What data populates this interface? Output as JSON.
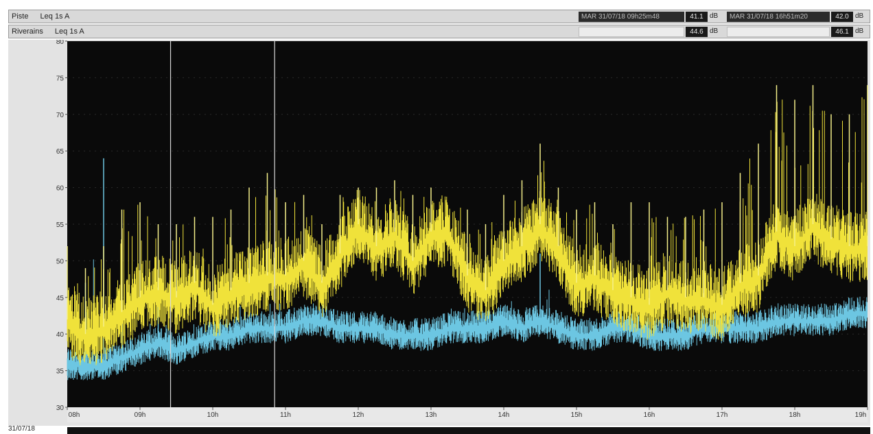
{
  "header": {
    "row1": {
      "label1": "Piste",
      "label2": "Leq 1s  A",
      "readout_min": "MAR 31/07/18 09h25m48",
      "value_min": "41.1",
      "unit_min": "dB",
      "readout_max": "MAR 31/07/18 16h51m20",
      "value_max": "42.0",
      "unit_max": "dB"
    },
    "row2": {
      "label1": "Riverains",
      "label2": "Leq 1s  A",
      "value_min": "44.6",
      "unit_min": "dB",
      "value_max": "46.1",
      "unit_max": "dB"
    }
  },
  "footer": {
    "date": "31/07/18"
  },
  "colors": {
    "background": "#0a0a0a",
    "yellow_series": "#f0e23a",
    "blue_series": "#6cc6e2"
  },
  "chart_data": {
    "type": "line",
    "xlabel": "",
    "ylabel": "",
    "xlim": [
      8,
      19
    ],
    "ylim": [
      30,
      80
    ],
    "yticks": [
      30,
      35,
      40,
      45,
      50,
      55,
      60,
      65,
      70,
      75,
      80
    ],
    "xtick_labels": [
      "08h",
      "09h",
      "10h",
      "11h",
      "12h",
      "13h",
      "14h",
      "15h",
      "16h",
      "17h",
      "18h",
      "19h"
    ],
    "markers_hours": [
      9.42,
      10.85
    ],
    "series": [
      {
        "name": "Riverains",
        "color": "#f0e23a",
        "hours": [
          8.0,
          8.25,
          8.5,
          8.75,
          9.0,
          9.25,
          9.5,
          9.75,
          10.0,
          10.25,
          10.5,
          10.75,
          11.0,
          11.25,
          11.5,
          11.75,
          12.0,
          12.25,
          12.5,
          12.75,
          13.0,
          13.25,
          13.5,
          13.75,
          14.0,
          14.25,
          14.5,
          14.75,
          15.0,
          15.25,
          15.5,
          15.75,
          16.0,
          16.25,
          16.5,
          16.75,
          17.0,
          17.25,
          17.5,
          17.75,
          18.0,
          18.25,
          18.5,
          18.75,
          19.0
        ],
        "db_base": [
          42,
          40,
          41,
          43,
          45,
          46,
          45,
          47,
          44,
          46,
          47,
          48,
          48,
          50,
          47,
          51,
          55,
          52,
          54,
          50,
          54,
          54,
          48,
          46,
          50,
          52,
          55,
          52,
          47,
          48,
          46,
          45,
          44,
          46,
          45,
          45,
          44,
          47,
          48,
          54,
          52,
          55,
          53,
          52,
          52
        ],
        "db_peak": [
          52,
          49,
          52,
          57,
          58,
          55,
          55,
          56,
          56,
          57,
          60,
          62,
          58,
          59,
          55,
          59,
          60,
          60,
          61,
          59,
          60,
          58,
          57,
          55,
          59,
          61,
          66,
          60,
          57,
          58,
          55,
          58,
          58,
          56,
          56,
          57,
          58,
          62,
          66,
          74,
          72,
          74,
          70,
          70,
          74
        ]
      },
      {
        "name": "Piste",
        "color": "#6cc6e2",
        "hours": [
          8.0,
          8.25,
          8.5,
          8.75,
          9.0,
          9.25,
          9.5,
          9.75,
          10.0,
          10.25,
          10.5,
          10.75,
          11.0,
          11.25,
          11.5,
          11.75,
          12.0,
          12.25,
          12.5,
          12.75,
          13.0,
          13.25,
          13.5,
          13.75,
          14.0,
          14.25,
          14.5,
          14.75,
          15.0,
          15.25,
          15.5,
          15.75,
          16.0,
          16.25,
          16.5,
          16.75,
          17.0,
          17.25,
          17.5,
          17.75,
          18.0,
          18.25,
          18.5,
          18.75,
          19.0
        ],
        "db_base": [
          36,
          36,
          36,
          37,
          38,
          39,
          38,
          39,
          40,
          40,
          41,
          41,
          41,
          42,
          42,
          41,
          41,
          41,
          40,
          40,
          40,
          41,
          41,
          41,
          42,
          41,
          42,
          41,
          40,
          40,
          41,
          41,
          40,
          40,
          40,
          41,
          41,
          41,
          41,
          42,
          42,
          42,
          42,
          43,
          43
        ],
        "db_peak": [
          39,
          47,
          64,
          43,
          42,
          44,
          42,
          43,
          43,
          44,
          44,
          45,
          45,
          45,
          45,
          44,
          44,
          44,
          43,
          43,
          43,
          44,
          44,
          44,
          45,
          44,
          51,
          44,
          43,
          43,
          44,
          44,
          43,
          43,
          43,
          44,
          44,
          44,
          44,
          45,
          45,
          46,
          46,
          47,
          47
        ]
      }
    ]
  }
}
